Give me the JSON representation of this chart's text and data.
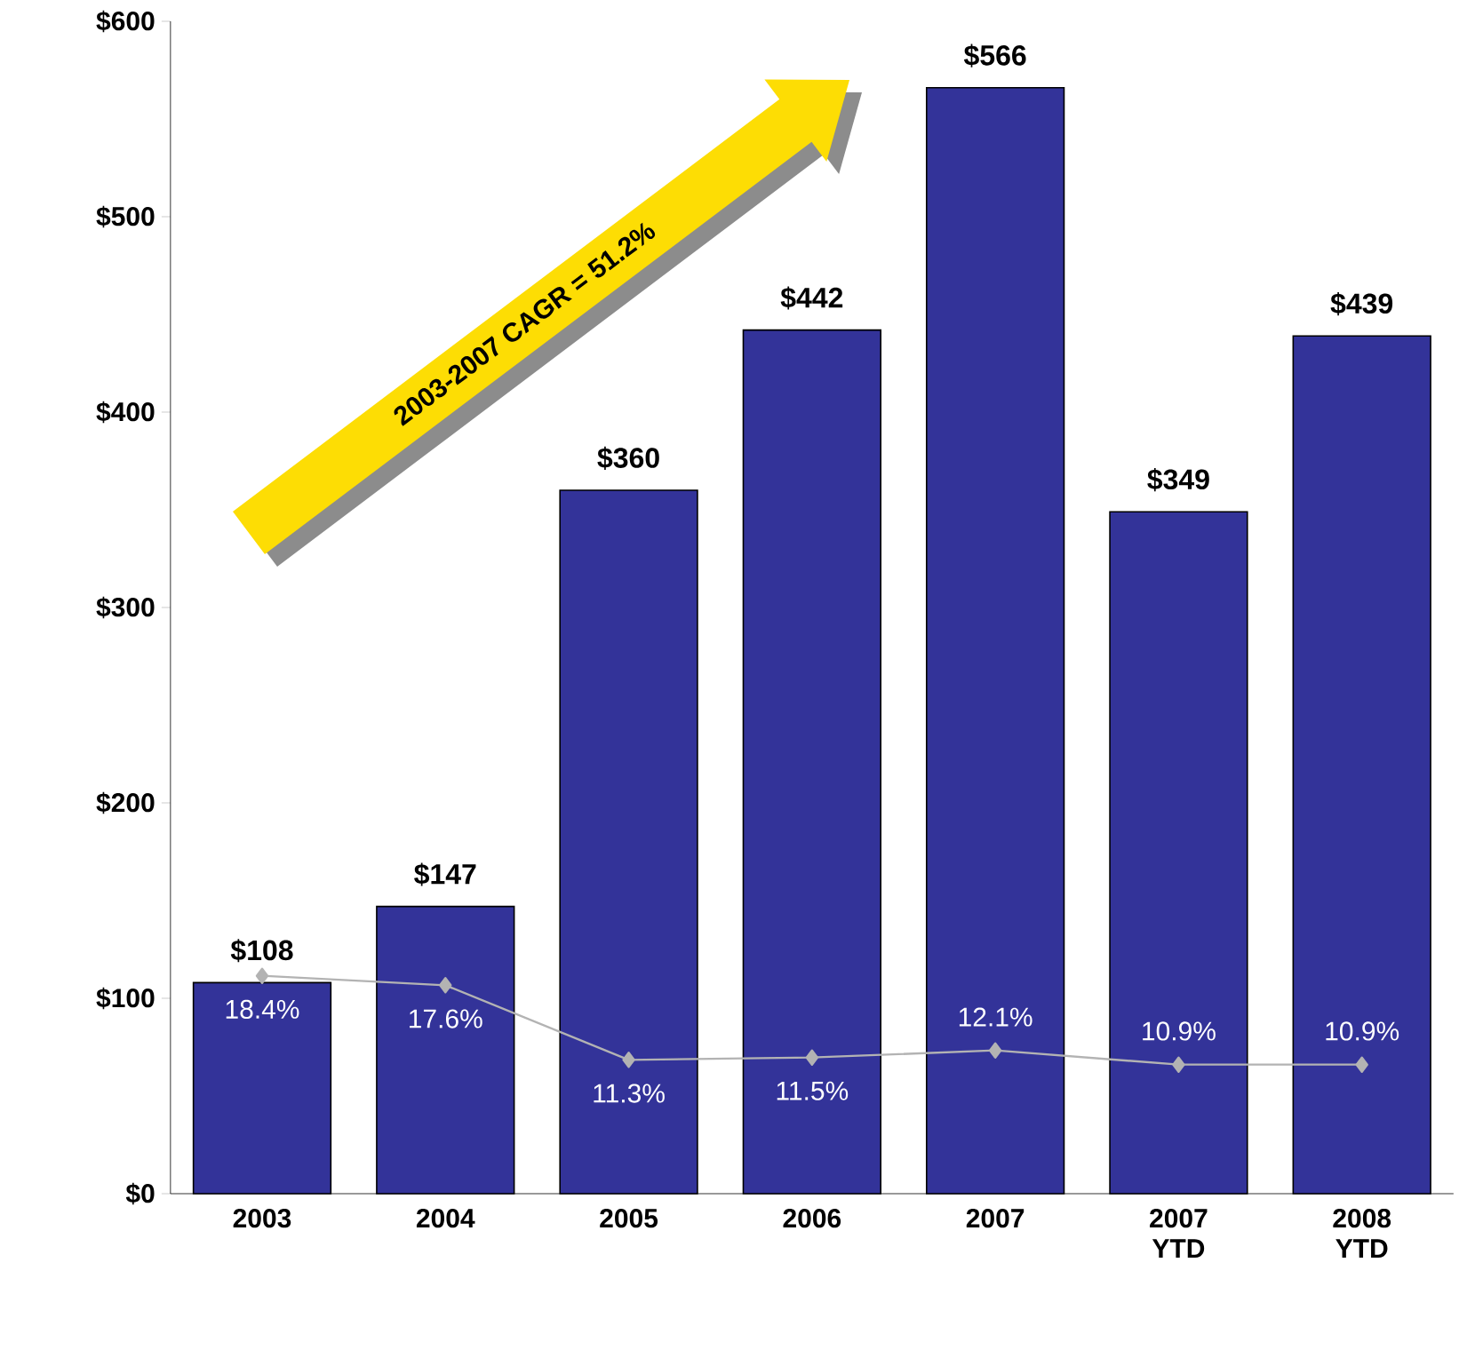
{
  "chart_data": {
    "type": "bar",
    "categories": [
      "2003",
      "2004",
      "2005",
      "2006",
      "2007",
      "2007 YTD",
      "2008 YTD"
    ],
    "series": [
      {
        "color": "#333399",
        "values": [
          108,
          147,
          360,
          442,
          566,
          349,
          439
        ],
        "value_labels": [
          "$108",
          "$147",
          "$360",
          "$442",
          "$566",
          "$349",
          "$439"
        ]
      },
      {
        "type": "line",
        "axis": "y2",
        "color": "#b3b3b3",
        "marker": "diamond",
        "values": [
          18.4,
          17.6,
          11.3,
          11.5,
          12.1,
          10.9,
          10.9
        ],
        "value_labels": [
          "18.4%",
          "17.6%",
          "11.3%",
          "11.5%",
          "12.1%",
          "10.9%",
          "10.9%"
        ]
      }
    ],
    "ylim": [
      0,
      600
    ],
    "yticks": [
      {
        "value": 0,
        "label": "$0"
      },
      {
        "value": 100,
        "label": "$100"
      },
      {
        "value": 200,
        "label": "$200"
      },
      {
        "value": 300,
        "label": "$300"
      },
      {
        "value": 400,
        "label": "$400"
      },
      {
        "value": 500,
        "label": "$500"
      },
      {
        "value": 600,
        "label": "$600"
      }
    ],
    "y2lim": [
      0,
      99
    ],
    "grid": false,
    "annotations": [
      "2003-2007 CAGR = 51.2%"
    ]
  }
}
